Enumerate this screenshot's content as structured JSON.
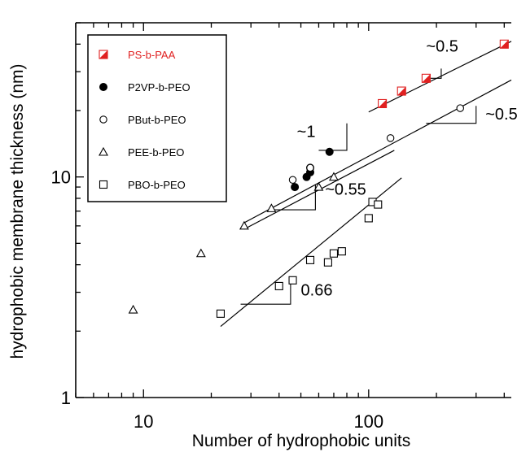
{
  "chart_data": {
    "type": "scatter",
    "title": "",
    "xlabel": "Number of hydrophobic units",
    "ylabel": "hydrophobic membrane thickness (nm)",
    "xscale": "log",
    "yscale": "log",
    "xlim": [
      5,
      430
    ],
    "ylim": [
      1,
      50
    ],
    "xticks": [
      10,
      100
    ],
    "xtick_labels": [
      "10",
      "100"
    ],
    "yticks": [
      1,
      10
    ],
    "ytick_labels": [
      "1",
      "10"
    ],
    "grid": false,
    "legend_position": "top-left",
    "series": [
      {
        "name": "PS-b-PAA",
        "marker": "half-filled-square",
        "color": "#e02020",
        "x": [
          115,
          140,
          180,
          400
        ],
        "y": [
          21.5,
          24.5,
          28,
          40
        ]
      },
      {
        "name": "P2VP-b-PEO",
        "marker": "filled-circle",
        "color": "#000000",
        "x": [
          47,
          53,
          55,
          55,
          67
        ],
        "y": [
          9,
          10,
          10.5,
          11,
          13
        ]
      },
      {
        "name": "PBut-b-PEO",
        "marker": "open-circle",
        "color": "#000000",
        "x": [
          46,
          55,
          125,
          255
        ],
        "y": [
          9.7,
          11,
          15,
          20.5
        ]
      },
      {
        "name": "PEE-b-PEO",
        "marker": "open-triangle",
        "color": "#000000",
        "x": [
          9,
          18,
          28,
          37,
          60,
          70
        ],
        "y": [
          2.5,
          4.5,
          6,
          7.2,
          9,
          10
        ]
      },
      {
        "name": "PBO-b-PEO",
        "marker": "open-square",
        "color": "#000000",
        "x": [
          22,
          40,
          46,
          55,
          66,
          70,
          76,
          100,
          104,
          110
        ],
        "y": [
          2.4,
          3.2,
          3.4,
          4.2,
          4.1,
          4.5,
          4.6,
          6.5,
          7.7,
          7.5
        ]
      }
    ],
    "fit_lines": [
      {
        "series": "PS-b-PAA",
        "x": [
          100,
          430
        ],
        "y": [
          19.7,
          41.2
        ]
      },
      {
        "series": "PBut-b-PEO",
        "x": [
          28,
          430
        ],
        "y": [
          6.2,
          27.5
        ]
      },
      {
        "series": "PEE-b-PEO",
        "x": [
          28,
          130
        ],
        "y": [
          5.8,
          13.2
        ]
      },
      {
        "series": "PBO-b-PEO",
        "x": [
          22,
          140
        ],
        "y": [
          2.1,
          9.9
        ]
      }
    ],
    "slope_triangles": [
      {
        "x": [
          180,
          210
        ],
        "y": [
          28,
          28
        ],
        "y2": 31
      },
      {
        "x": [
          60,
          80
        ],
        "y": [
          13.2,
          13.2
        ],
        "y2": 17.5
      },
      {
        "x": [
          180,
          300
        ],
        "y": [
          17.5,
          17.5
        ],
        "y2": 21
      },
      {
        "x": [
          38,
          58
        ],
        "y": [
          7.1,
          7.1
        ],
        "y2": 9.2
      },
      {
        "x": [
          27,
          45
        ],
        "y": [
          2.65,
          2.65
        ],
        "y2": 3.5
      }
    ],
    "annotations": [
      {
        "text": "~0.5",
        "x": 180,
        "y": 37
      },
      {
        "text": "~1",
        "x": 48,
        "y": 15.2
      },
      {
        "text": "~0.5",
        "x": 330,
        "y": 18.2
      },
      {
        "text": "~0.55",
        "x": 64,
        "y": 8.3
      },
      {
        "text": "0.66",
        "x": 50,
        "y": 2.9
      }
    ]
  }
}
